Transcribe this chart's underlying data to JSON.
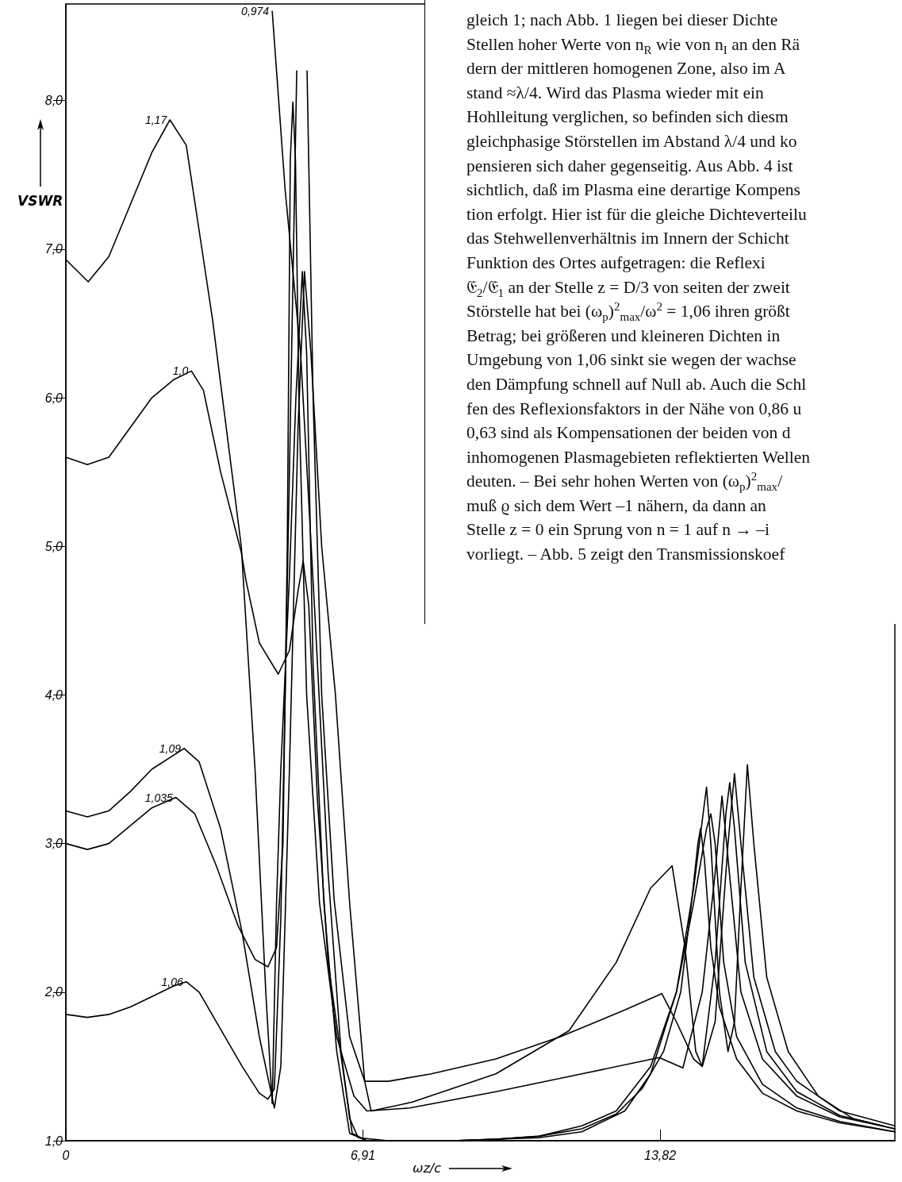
{
  "chart_data": {
    "type": "line",
    "xlabel": "ωz/c",
    "ylabel": "VSWR",
    "annotations": [
      "gleich 1; nach Abb. 1 liegen bei dieser Dichte",
      "Stellen hoher Werte von n$_{R}$ wie von n$_{I}$ an den Rä",
      "dern der mittleren homogenen Zone, also im A",
      "stand ≈λ/4. Wird das Plasma wieder mit ein",
      "Hohlleitung verglichen, so befinden sich diesm",
      "gleichphasige Störstellen im Abstand λ/4 und ko",
      "pensieren sich daher gegenseitig. Aus Abb. 4 ist",
      "sichtlich, daß im Plasma eine derartige Kompens",
      "tion erfolgt. Hier ist für die gleiche Dichteverteilu",
      "das Stehwellenverhältnis im Innern der Schicht",
      "Funktion des Ortes aufgetragen: die Reflexi",
      "𝔈$_{2}$/𝔈$_{1}$ an der Stelle z = D/3 von seiten der zweit",
      "Störstelle hat bei (ω$_{p}$)$^{2}$$_{max}$/ω$^{2}$ = 1,06 ihren größt",
      "Betrag; bei größeren und kleineren Dichten in",
      "Umgebung von 1,06 sinkt sie wegen der wachse",
      "den Dämpfung schnell auf Null ab. Auch die Schl",
      "fen des Reflexionsfaktors in der Nähe von 0,86 u",
      "0,63 sind als Kompensationen der beiden von d",
      "inhomogenen Plasmagebieten reflektierten Wellen",
      "deuten. – Bei sehr hohen Werten von (ω$_{p}$)$^{2}$$_{max}$/",
      "muß ϱ sich dem Wert –1 nähern, da dann an",
      "Stelle z = 0 ein Sprung von n = 1 auf n → –i",
      "vorliegt. – Abb. 5 zeigt den Transmissionskoef"
    ],
    "xlim": [
      0,
      19.28
    ],
    "ylim": [
      1,
      8.65
    ],
    "xticks": [
      0,
      {
        "value": 6.91,
        "label": "6,91"
      },
      {
        "value": 13.82,
        "label": "13,82"
      }
    ],
    "yticks": [
      {
        "value": 1,
        "label": "1,0"
      },
      {
        "value": 2,
        "label": "2,0"
      },
      {
        "value": 3,
        "label": "3,0"
      },
      {
        "value": 4,
        "label": "4,0"
      },
      {
        "value": 5,
        "label": "5,0"
      },
      {
        "value": 6,
        "label": "6,0"
      },
      {
        "value": 7,
        "label": "7,0"
      },
      {
        "value": 8,
        "label": "8,0"
      }
    ],
    "marker": "none",
    "line_style": "solid",
    "series": [
      {
        "name": "0,974",
        "color": "#000000",
        "x": [
          4.8,
          5.1,
          5.46,
          5.8,
          6.1,
          6.4,
          6.6,
          6.8,
          7.5,
          8,
          9,
          10,
          11,
          12,
          12.8,
          13.4,
          13.9,
          14.3,
          14.55,
          14.7,
          14.76,
          14.85,
          15.0,
          15.2,
          15.6,
          16.2,
          17,
          18,
          19.28
        ],
        "values": [
          8.6,
          7.4,
          6.3,
          4.5,
          2.8,
          1.6,
          1.15,
          1.02,
          1.0,
          1.0,
          1.0,
          1.01,
          1.03,
          1.08,
          1.18,
          1.35,
          1.6,
          2.0,
          2.6,
          3.0,
          3.1,
          2.9,
          2.3,
          1.9,
          1.55,
          1.32,
          1.2,
          1.12,
          1.06
        ]
      },
      {
        "name": "1,0",
        "color": "#000000",
        "x": [
          0,
          0.5,
          1,
          1.5,
          2,
          2.5,
          2.92,
          3.2,
          3.6,
          4.08,
          4.19,
          4.5,
          4.94,
          5.2,
          5.4,
          5.52,
          5.65,
          5.85,
          6.1,
          6.42,
          6.66,
          7,
          8,
          9,
          10,
          11,
          12,
          12.8,
          13.6,
          14.2,
          14.6,
          14.9,
          15.0,
          15.1,
          15.3,
          15.6,
          16.2,
          17,
          18,
          19.28
        ],
        "values": [
          5.6,
          5.55,
          5.6,
          5.8,
          6.0,
          6.12,
          6.18,
          6.05,
          5.5,
          4.96,
          4.77,
          4.35,
          4.14,
          4.3,
          4.7,
          4.9,
          4.6,
          3.3,
          2.2,
          1.53,
          1.05,
          1.0,
          1.0,
          1.0,
          1.01,
          1.03,
          1.1,
          1.2,
          1.5,
          2.0,
          2.6,
          3.1,
          3.2,
          3.0,
          2.2,
          1.7,
          1.38,
          1.22,
          1.13,
          1.06
        ]
      },
      {
        "name": "1,035",
        "color": "#000000",
        "x": [
          0,
          0.5,
          1,
          1.5,
          2,
          2.56,
          3.0,
          3.5,
          4.0,
          4.4,
          4.7,
          4.9,
          5.05,
          5.15,
          5.22,
          5.28,
          5.34,
          5.42,
          5.6,
          5.9,
          6.3,
          6.7,
          7.0,
          8,
          10,
          12,
          13.8,
          14.35,
          14.8,
          15.1,
          15.26,
          15.4,
          15.7,
          16.2,
          17,
          18,
          19.28
        ],
        "values": [
          3.0,
          2.96,
          3.0,
          3.12,
          3.24,
          3.31,
          3.2,
          2.85,
          2.45,
          2.22,
          2.17,
          2.3,
          3.0,
          5.0,
          7.6,
          7.99,
          7.6,
          6.0,
          4.0,
          2.6,
          1.7,
          1.3,
          1.2,
          1.22,
          1.33,
          1.45,
          1.56,
          1.49,
          2.0,
          2.8,
          3.32,
          2.9,
          2.0,
          1.55,
          1.3,
          1.16,
          1.08
        ]
      },
      {
        "name": "1,06",
        "color": "#000000",
        "x": [
          0,
          0.5,
          1,
          1.5,
          2,
          2.5,
          2.8,
          3.1,
          3.6,
          4.1,
          4.5,
          4.7,
          4.85,
          5.0,
          5.2,
          5.37,
          5.49,
          5.61,
          5.75,
          5.95,
          6.24,
          6.6,
          6.95,
          7.5,
          8.5,
          10,
          11.5,
          13,
          13.86,
          14.2,
          14.6,
          14.8,
          15.1,
          15.35,
          15.44,
          15.55,
          15.8,
          16.3,
          17,
          18,
          19.28
        ],
        "values": [
          1.85,
          1.83,
          1.85,
          1.9,
          1.97,
          2.04,
          2.07,
          2.0,
          1.75,
          1.5,
          1.32,
          1.28,
          1.35,
          2.5,
          5.5,
          8.2,
          null,
          8.2,
          6.0,
          4.0,
          2.62,
          1.7,
          1.4,
          1.4,
          1.45,
          1.55,
          1.7,
          1.88,
          1.99,
          1.8,
          1.55,
          1.5,
          2.2,
          3.2,
          3.41,
          3.1,
          2.2,
          1.6,
          1.33,
          1.17,
          1.08
        ]
      },
      {
        "name": "1,09",
        "color": "#000000",
        "x": [
          0,
          0.5,
          1,
          1.5,
          2,
          2.75,
          3.1,
          3.6,
          4.1,
          4.5,
          4.85,
          5.0,
          5.2,
          5.4,
          5.55,
          5.7,
          5.95,
          6.27,
          6.6,
          6.95,
          7.1,
          8.06,
          10,
          11.7,
          12.8,
          13.6,
          14.1,
          14.4,
          14.65,
          14.8,
          15.1,
          15.4,
          15.55,
          15.7,
          16.0,
          16.5,
          17,
          18,
          19.28
        ],
        "values": [
          3.22,
          3.18,
          3.22,
          3.35,
          3.5,
          3.64,
          3.55,
          3.1,
          2.4,
          1.7,
          1.22,
          1.5,
          3.5,
          5.8,
          6.85,
          6.3,
          5.0,
          4.0,
          2.6,
          1.4,
          1.2,
          1.26,
          1.45,
          1.74,
          2.2,
          2.7,
          2.85,
          2.3,
          1.6,
          1.5,
          1.8,
          3.0,
          3.47,
          3.0,
          2.1,
          1.6,
          1.4,
          1.2,
          1.1
        ]
      },
      {
        "name": "1,17",
        "color": "#000000",
        "x": [
          0,
          0.52,
          1,
          1.5,
          2,
          2.42,
          2.8,
          3.41,
          4.08,
          4.4,
          4.65,
          4.8,
          4.9,
          5.0,
          5.2,
          5.35,
          5.5,
          5.6,
          5.75,
          6.0,
          6.3,
          6.6,
          7,
          9,
          11,
          12,
          13,
          13.6,
          14.2,
          14.6,
          14.9,
          15.0,
          15.2,
          15.4,
          15.55,
          15.7,
          15.85,
          16.0,
          16.3,
          16.8,
          17.5,
          18.3,
          19.0
        ],
        "values": [
          6.93,
          6.78,
          6.95,
          7.3,
          7.65,
          7.87,
          7.7,
          6.53,
          5.0,
          3.5,
          2.0,
          1.25,
          2.6,
          3.5,
          4.8,
          6.0,
          6.85,
          6.3,
          4.2,
          2.6,
          1.6,
          1.05,
          1.0,
          1.0,
          1.02,
          1.06,
          1.2,
          1.45,
          2.0,
          2.7,
          3.38,
          3.0,
          2.0,
          1.6,
          1.8,
          2.7,
          3.53,
          3.0,
          2.1,
          1.6,
          1.3,
          1.15,
          1.1
        ]
      }
    ]
  }
}
